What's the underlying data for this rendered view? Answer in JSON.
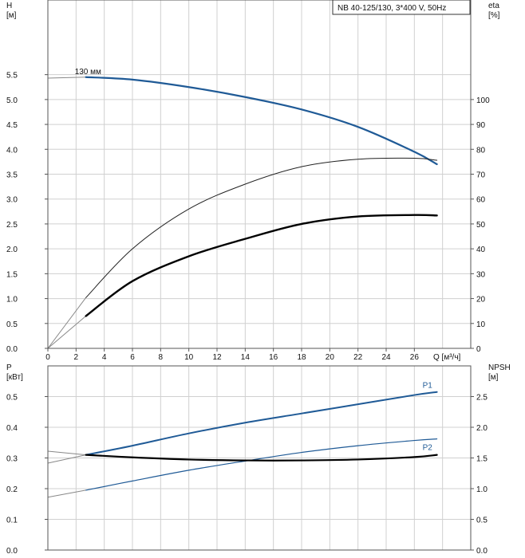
{
  "title": "NB 40-125/130, 3*400 V, 50Hz",
  "colors": {
    "blue": "#1f5a96",
    "black": "#000000",
    "thin": "#222222",
    "grid": "#d0d0d0"
  },
  "chart_data": [
    {
      "type": "line",
      "panel": "top",
      "xlabel": "Q [м³/ч]",
      "xlim": [
        0,
        30
      ],
      "xticks": [
        0,
        2,
        4,
        6,
        8,
        10,
        12,
        14,
        16,
        18,
        20,
        22,
        24,
        26
      ],
      "left_axis": {
        "label": "H",
        "unit": "[м]",
        "lim": [
          0,
          7
        ],
        "ticks": [
          0.0,
          0.5,
          1.0,
          1.5,
          2.0,
          2.5,
          3.0,
          3.5,
          4.0,
          4.5,
          5.0,
          5.5
        ]
      },
      "right_axis": {
        "label": "eta",
        "unit": "[%]",
        "lim": [
          0,
          140
        ],
        "ticks": [
          0,
          10,
          20,
          30,
          40,
          50,
          60,
          70,
          80,
          90,
          100
        ]
      },
      "grid": true,
      "series": [
        {
          "name": "130 мм",
          "axis": "left",
          "color": "blue",
          "width": 2.2,
          "x": [
            2.7,
            6,
            10,
            14,
            18,
            22,
            26,
            27.6
          ],
          "y": [
            5.45,
            5.4,
            5.25,
            5.05,
            4.8,
            4.45,
            3.95,
            3.7
          ]
        },
        {
          "axis": "left",
          "color": "thin",
          "width": 1,
          "x": [
            2.7,
            6,
            10,
            14,
            18,
            22,
            26,
            27.6
          ],
          "y": [
            1.02,
            2.0,
            2.8,
            3.3,
            3.65,
            3.8,
            3.82,
            3.78
          ]
        },
        {
          "axis": "left",
          "color": "black",
          "width": 2.4,
          "x": [
            2.7,
            6,
            10,
            14,
            18,
            22,
            26,
            27.6
          ],
          "y": [
            0.65,
            1.35,
            1.85,
            2.2,
            2.5,
            2.65,
            2.68,
            2.67
          ]
        }
      ],
      "extensions": [
        {
          "color": "#888888",
          "x": [
            0,
            2.7
          ],
          "y": [
            0,
            1.02
          ]
        },
        {
          "color": "#888888",
          "x": [
            0,
            2.7
          ],
          "y": [
            0,
            0.65
          ]
        },
        {
          "color": "#888888",
          "x": [
            0,
            2.7
          ],
          "y": [
            5.43,
            5.45
          ]
        }
      ]
    },
    {
      "type": "line",
      "panel": "bottom",
      "xlim": [
        0,
        30
      ],
      "left_axis": {
        "label": "P",
        "unit": "[кВт]",
        "lim": [
          0,
          0.6
        ],
        "ticks": [
          0.0,
          0.1,
          0.2,
          0.3,
          0.4,
          0.5
        ]
      },
      "right_axis": {
        "label": "NPSH",
        "unit": "[м]",
        "lim": [
          0,
          3.0
        ],
        "ticks": [
          0.0,
          0.5,
          1.0,
          1.5,
          2.0,
          2.5
        ]
      },
      "grid": true,
      "series": [
        {
          "name": "P1",
          "axis": "left",
          "color": "blue",
          "width": 2,
          "x": [
            2.7,
            6,
            10,
            14,
            18,
            22,
            26,
            27.6
          ],
          "y": [
            0.31,
            0.34,
            0.38,
            0.415,
            0.445,
            0.475,
            0.505,
            0.515
          ]
        },
        {
          "name": "P2",
          "axis": "left",
          "color": "blue",
          "width": 1.2,
          "x": [
            2.7,
            6,
            10,
            14,
            18,
            22,
            26,
            27.6
          ],
          "y": [
            0.195,
            0.225,
            0.26,
            0.29,
            0.318,
            0.34,
            0.357,
            0.362
          ]
        },
        {
          "axis": "left",
          "color": "black",
          "width": 2.2,
          "x": [
            2.7,
            6,
            10,
            14,
            18,
            22,
            26,
            27.6
          ],
          "y": [
            0.31,
            0.302,
            0.295,
            0.292,
            0.292,
            0.295,
            0.303,
            0.31
          ]
        }
      ],
      "extensions": [
        {
          "color": "#888888",
          "x": [
            0,
            2.7
          ],
          "y": [
            0.283,
            0.31
          ]
        },
        {
          "color": "#888888",
          "x": [
            0,
            2.7
          ],
          "y": [
            0.172,
            0.195
          ]
        },
        {
          "color": "#888888",
          "x": [
            0,
            2.7
          ],
          "y": [
            0.322,
            0.31
          ]
        }
      ]
    }
  ]
}
